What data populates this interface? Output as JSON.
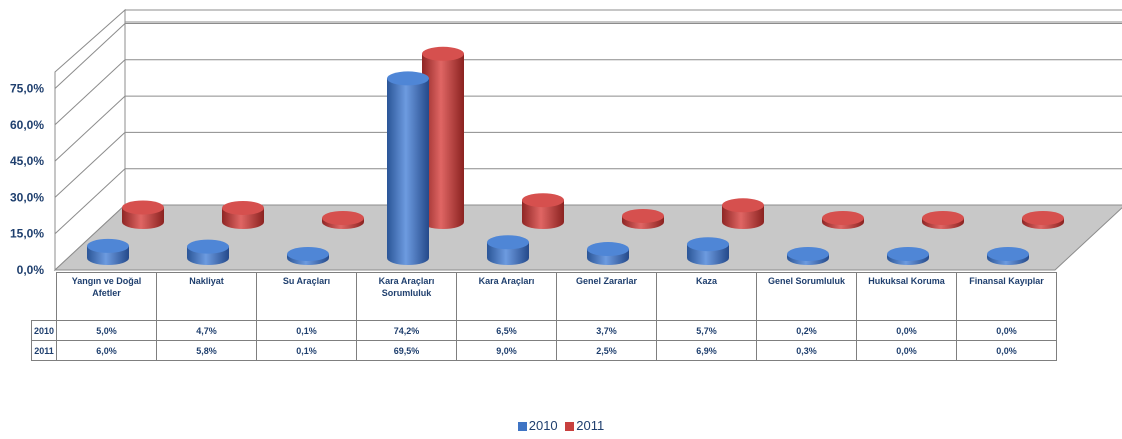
{
  "chart_data": {
    "type": "bar",
    "categories": [
      "Yangın ve Doğal Afetler",
      "Nakliyat",
      "Su Araçları",
      "Kara Araçları Sorumluluk",
      "Kara Araçları",
      "Genel Zararlar",
      "Kaza",
      "Genel Sorumluluk",
      "Hukuksal Koruma",
      "Finansal Kayıplar"
    ],
    "series": [
      {
        "name": "2010",
        "values": [
          5.0,
          4.7,
          0.1,
          74.2,
          6.5,
          3.7,
          5.7,
          0.2,
          0.0,
          0.0
        ],
        "labels": [
          "5,0%",
          "4,7%",
          "0,1%",
          "74,2%",
          "6,5%",
          "3,7%",
          "5,7%",
          "0,2%",
          "0,0%",
          "0,0%"
        ],
        "color": "#3f74c4"
      },
      {
        "name": "2011",
        "values": [
          6.0,
          5.8,
          0.1,
          69.5,
          9.0,
          2.5,
          6.9,
          0.3,
          0.0,
          0.0
        ],
        "labels": [
          "6,0%",
          "5,8%",
          "0,1%",
          "69,5%",
          "9,0%",
          "2,5%",
          "6,9%",
          "0,3%",
          "0,0%",
          "0,0%"
        ],
        "color": "#c8403e"
      }
    ],
    "yticks": [
      "0,0%",
      "15,0%",
      "30,0%",
      "45,0%",
      "60,0%",
      "75,0%"
    ],
    "ylim": [
      0,
      90
    ],
    "grid": true,
    "legend": "bottom",
    "three_d": true,
    "data_table": true
  },
  "legend": [
    {
      "label": "2010",
      "color": "#3f74c4"
    },
    {
      "label": "2011",
      "color": "#c8403e"
    }
  ]
}
